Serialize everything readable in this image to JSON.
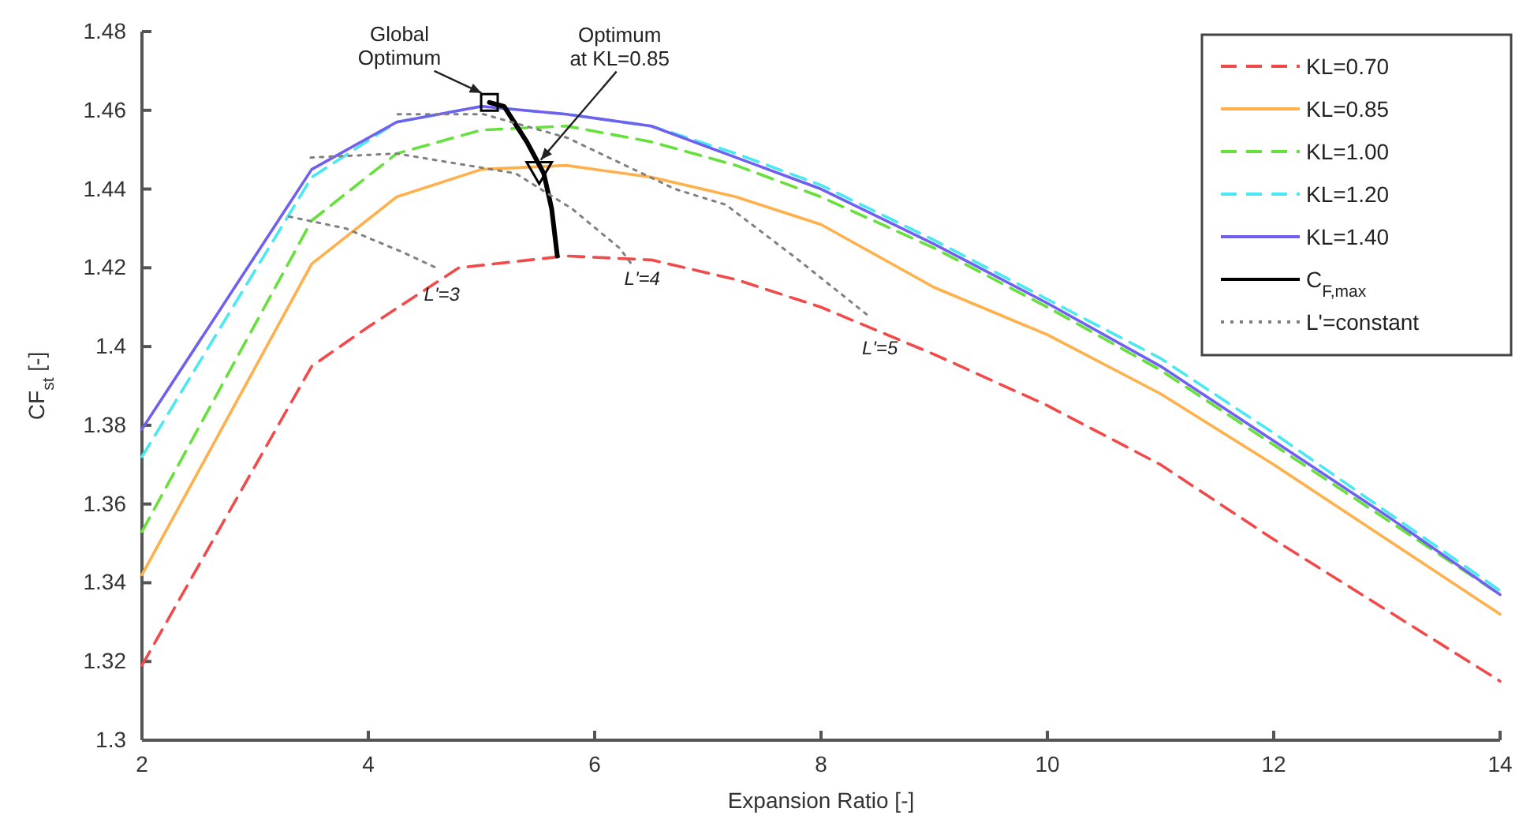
{
  "chart_data": {
    "type": "line",
    "xlabel": "Expansion Ratio [-]",
    "ylabel": "CF$_{st}$ [-]",
    "xlim": [
      2,
      14
    ],
    "ylim": [
      1.3,
      1.48
    ],
    "xticks": [
      2,
      4,
      6,
      8,
      10,
      12,
      14
    ],
    "yticks": [
      1.3,
      1.32,
      1.34,
      1.36,
      1.38,
      1.4,
      1.42,
      1.44,
      1.46,
      1.48
    ],
    "grid": false,
    "legend": "top right",
    "series": [
      {
        "name": "KL=0.70",
        "color": "#f04a4a",
        "line_style": "dashed",
        "x": [
          2,
          3.5,
          4,
          4.8,
          5.75,
          6.5,
          7.25,
          8,
          9,
          10,
          11,
          12,
          13,
          14
        ],
        "values": [
          1.319,
          1.395,
          1.405,
          1.42,
          1.423,
          1.422,
          1.417,
          1.41,
          1.398,
          1.385,
          1.37,
          1.351,
          1.333,
          1.315
        ]
      },
      {
        "name": "KL=0.85",
        "color": "#ffb04a",
        "line_style": "solid",
        "x": [
          2,
          3.5,
          4.25,
          5,
          5.75,
          6.5,
          7.25,
          8,
          9,
          10,
          11,
          12,
          13,
          14
        ],
        "values": [
          1.342,
          1.421,
          1.438,
          1.445,
          1.446,
          1.443,
          1.438,
          1.431,
          1.415,
          1.403,
          1.388,
          1.37,
          1.351,
          1.332
        ]
      },
      {
        "name": "KL=1.00",
        "color": "#66e03a",
        "line_style": "dashed",
        "x": [
          2,
          3.5,
          4.25,
          5,
          5.75,
          6.5,
          7.25,
          8,
          9,
          10,
          11,
          12,
          13,
          14
        ],
        "values": [
          1.353,
          1.432,
          1.449,
          1.455,
          1.456,
          1.452,
          1.446,
          1.438,
          1.425,
          1.41,
          1.394,
          1.375,
          1.356,
          1.337
        ]
      },
      {
        "name": "KL=1.20",
        "color": "#4ae8f0",
        "line_style": "dashed",
        "x": [
          2,
          3.5,
          4.25,
          5,
          5.75,
          6.5,
          7.25,
          8,
          9,
          10,
          11,
          12,
          13,
          14
        ],
        "values": [
          1.372,
          1.443,
          1.457,
          1.461,
          1.459,
          1.456,
          1.449,
          1.441,
          1.427,
          1.412,
          1.397,
          1.378,
          1.358,
          1.338
        ]
      },
      {
        "name": "KL=1.40",
        "color": "#7060f0",
        "line_style": "solid",
        "x": [
          2,
          3.5,
          4.25,
          5,
          5.75,
          6.5,
          7.25,
          8,
          9,
          10,
          11,
          12,
          13,
          14
        ],
        "values": [
          1.379,
          1.445,
          1.457,
          1.461,
          1.459,
          1.456,
          1.448,
          1.44,
          1.426,
          1.411,
          1.395,
          1.376,
          1.357,
          1.337
        ]
      },
      {
        "name": "C$_{F,max}$",
        "color": "#000000",
        "line_style": "solid",
        "x": [
          5.07,
          5.2,
          5.4,
          5.55,
          5.62,
          5.67
        ],
        "values": [
          1.462,
          1.461,
          1.452,
          1.444,
          1.435,
          1.423
        ]
      },
      {
        "name": "L'=constant",
        "color": "#808080",
        "line_style": "dotted",
        "x": [
          3.3,
          3.8,
          4.3,
          4.6
        ],
        "values": [
          1.433,
          1.43,
          1.424,
          1.42
        ]
      },
      {
        "color": "#808080",
        "line_style": "dotted",
        "x": [
          3.49,
          4.25,
          5.3,
          5.8,
          6.22,
          6.35
        ],
        "values": [
          1.448,
          1.449,
          1.444,
          1.435,
          1.425,
          1.42
        ]
      },
      {
        "color": "#808080",
        "line_style": "dotted",
        "x": [
          4.26,
          5.02,
          5.76,
          6.71,
          7.16,
          7.8,
          8.41
        ],
        "values": [
          1.459,
          1.459,
          1.453,
          1.44,
          1.436,
          1.422,
          1.408
        ]
      },
      {
        "type": "scatter",
        "color": "#000000",
        "marker": "square",
        "x": [
          5.07
        ],
        "values": [
          1.462
        ]
      },
      {
        "type": "scatter",
        "color": "#000000",
        "marker": "triangle",
        "x": [
          5.51
        ],
        "values": [
          1.445
        ]
      }
    ],
    "annotations": [
      {
        "text": "Global\nOptimum",
        "x": 5.07,
        "y": 1.462
      },
      {
        "text": "Optimum\nat KL=0.85",
        "x": 5.51,
        "y": 1.445
      },
      "L'=3",
      "L'=4",
      "L'=5"
    ]
  }
}
